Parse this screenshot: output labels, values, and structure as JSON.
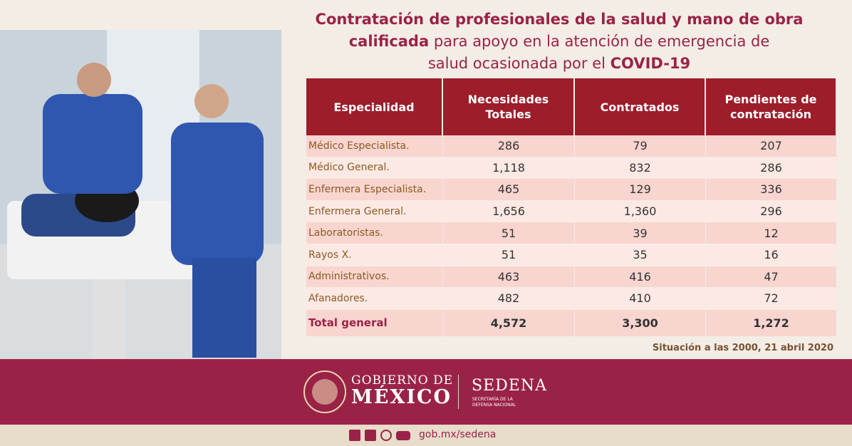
{
  "title": {
    "lines": [
      [
        {
          "text": "Contratación de profesionales de la salud  y mano de obra",
          "bold": true
        }
      ],
      [
        {
          "text": "calificada",
          "bold": true
        },
        {
          "text": " para apoyo en la atención de emergencia de",
          "bold": false
        }
      ],
      [
        {
          "text": "salud ocasionada por el ",
          "bold": false
        },
        {
          "text": "COVID-19",
          "bold": true
        }
      ]
    ]
  },
  "table": {
    "header": [
      "Especialidad",
      "Necesidades Totales",
      "Contratados",
      "Pendientes de contratación"
    ],
    "rows": [
      [
        "Médico Especialista.",
        "286",
        "79",
        "207"
      ],
      [
        "Médico General.",
        "1,118",
        "832",
        "286"
      ],
      [
        "Enfermera Especialista.",
        "465",
        "129",
        "336"
      ],
      [
        "Enfermera General.",
        "1,656",
        "1,360",
        "296"
      ],
      [
        "Laboratoristas.",
        "51",
        "39",
        "12"
      ],
      [
        "Rayos X.",
        "51",
        "35",
        "16"
      ],
      [
        "Administrativos.",
        "463",
        "416",
        "47"
      ],
      [
        "Afanadores.",
        "482",
        "410",
        "72"
      ]
    ],
    "total": [
      "Total general",
      "4,572",
      "3,300",
      "1,272"
    ]
  },
  "note": "Situación a las 2000, 21 abril 2020",
  "footer": {
    "gobierno_line1": "GOBIERNO DE",
    "gobierno_line2": "MÉXICO",
    "sedena": "SEDENA",
    "sedena_sub1": "SECRETARÍA DE LA",
    "sedena_sub2": "DEFENSA NACIONAL",
    "url": "gob.mx/sedena"
  }
}
